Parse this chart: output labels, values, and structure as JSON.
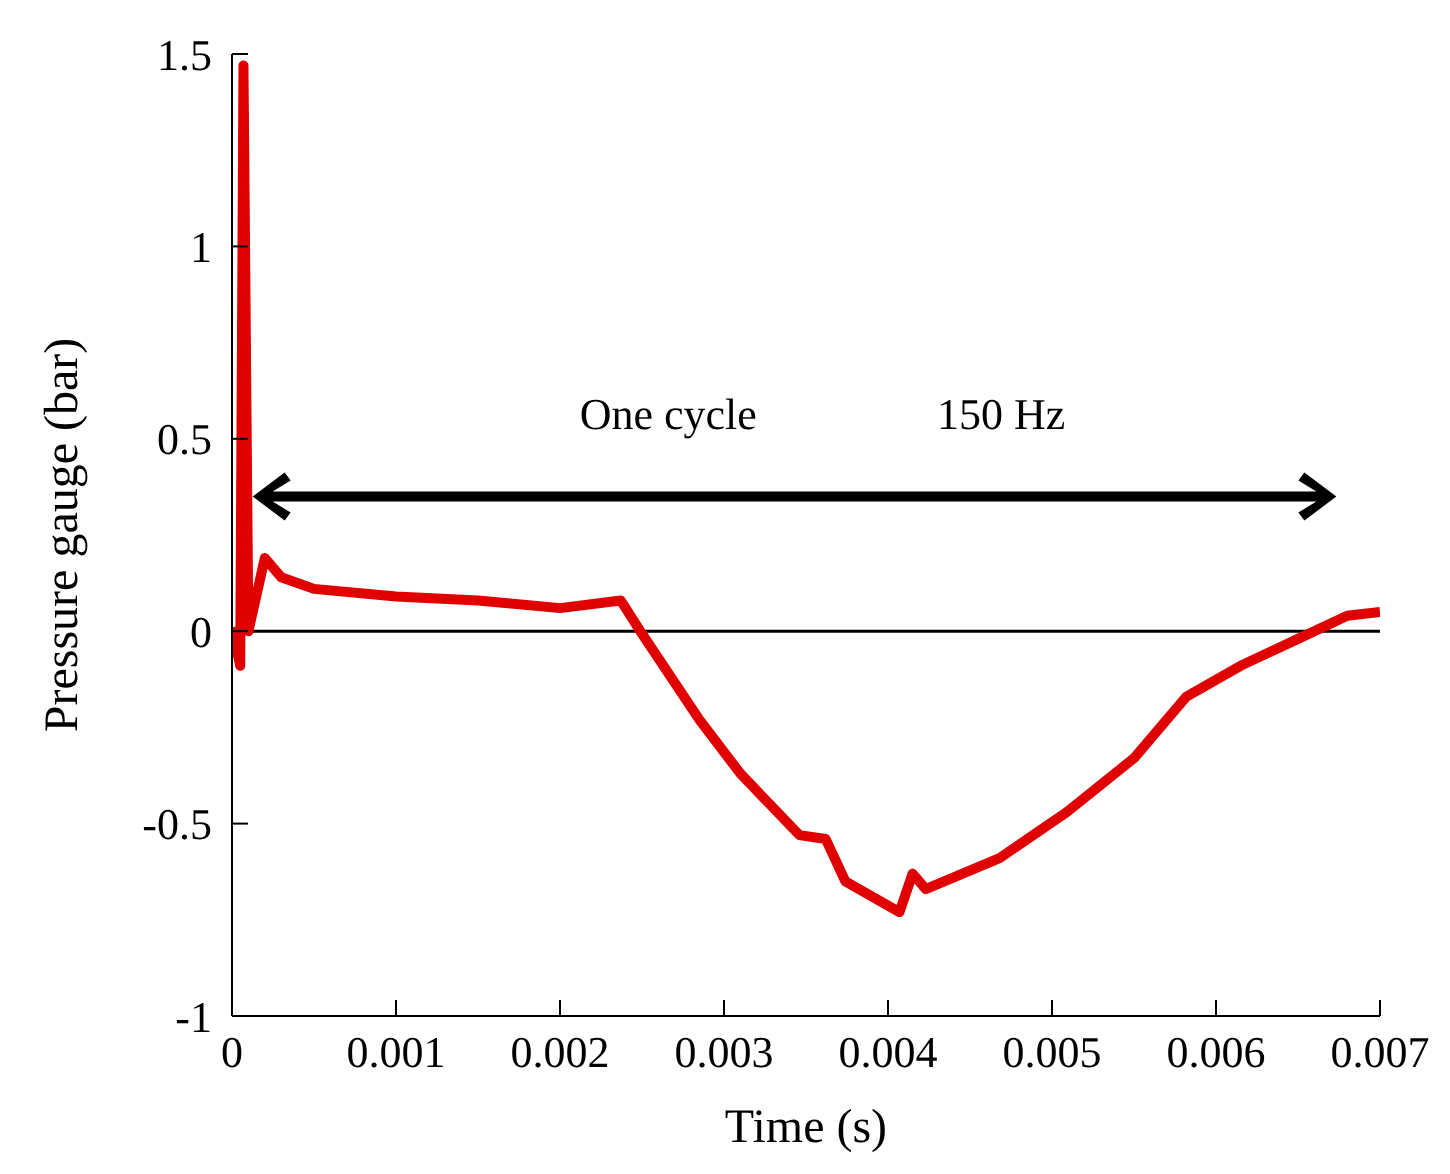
{
  "chart_data": {
    "type": "line",
    "xlabel": "Time (s)",
    "ylabel": "Pressure gauge (bar)",
    "annotations": [
      "One cycle",
      "150 Hz"
    ],
    "x": [
      0,
      5e-05,
      7e-05,
      0.0001,
      0.0002,
      0.0003,
      0.0005,
      0.001,
      0.0015,
      0.002,
      0.00237,
      0.00249,
      0.00285,
      0.0031,
      0.00346,
      0.00362,
      0.00374,
      0.00407,
      0.00415,
      0.00423,
      0.00468,
      0.00509,
      0.0055,
      0.00582,
      0.00615,
      0.0065,
      0.0068,
      0.007
    ],
    "series": [
      {
        "color": "#e00000",
        "values": [
          0.01,
          -0.09,
          1.47,
          0.0,
          0.19,
          0.14,
          0.11,
          0.09,
          0.08,
          0.06,
          0.08,
          0.0,
          -0.23,
          -0.37,
          -0.53,
          -0.54,
          -0.65,
          -0.73,
          -0.63,
          -0.67,
          -0.59,
          -0.47,
          -0.33,
          -0.17,
          -0.09,
          -0.02,
          0.04,
          0.05
        ]
      }
    ],
    "xlim": [
      0,
      0.007
    ],
    "xticks": [
      0,
      0.001,
      0.002,
      0.003,
      0.004,
      0.005,
      0.006,
      0.007
    ],
    "ylim": [
      -1,
      1.5
    ],
    "yticks": [
      -1,
      -0.5,
      0,
      0.5,
      1,
      1.5
    ],
    "ref_lines": [
      {
        "axis": "y",
        "value": 0,
        "color": "#000000"
      }
    ],
    "grid": false,
    "legend": false,
    "marker": "none",
    "line_style": "solid"
  }
}
